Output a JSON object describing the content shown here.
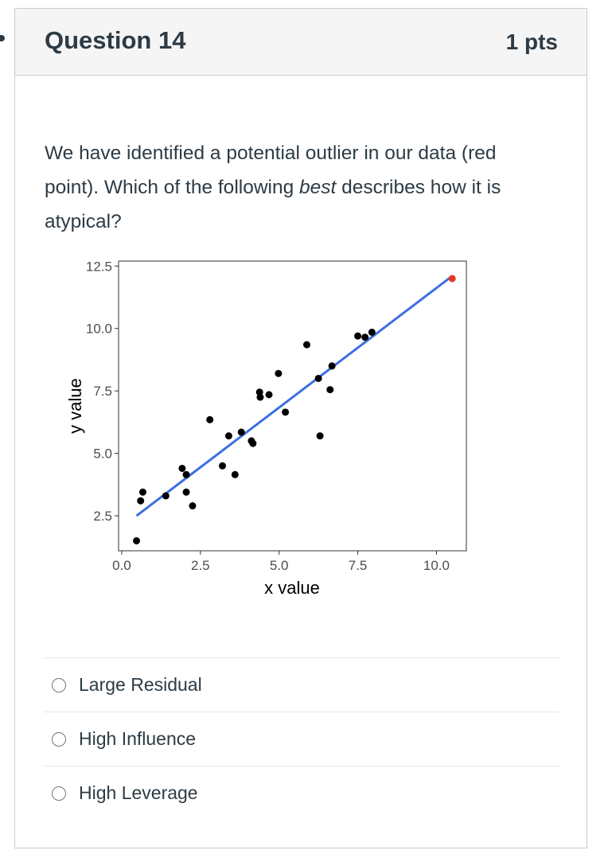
{
  "question": {
    "title": "Question 14",
    "points": "1 pts",
    "text_before": "We have identified a potential outlier in our data (red point). Which of the following ",
    "text_emphasis": "best",
    "text_after": " describes how it is atypical?"
  },
  "answers": [
    {
      "label": "Large Residual",
      "selected": false
    },
    {
      "label": "High Influence",
      "selected": false
    },
    {
      "label": "High Leverage",
      "selected": false
    }
  ],
  "chart_data": {
    "type": "scatter",
    "xlabel": "x value",
    "ylabel": "y value",
    "xlim": [
      -0.1,
      10.95
    ],
    "ylim": [
      1.1,
      12.7
    ],
    "x_ticks": [
      "0.0",
      "2.5",
      "5.0",
      "7.5",
      "10.0"
    ],
    "x_tick_values": [
      0,
      2.5,
      5,
      7.5,
      10
    ],
    "y_ticks": [
      "2.5",
      "5.0",
      "7.5",
      "10.0",
      "12.5"
    ],
    "y_tick_values": [
      2.5,
      5,
      7.5,
      10,
      12.5
    ],
    "grid": false,
    "points": [
      {
        "x": 0.47,
        "y": 1.5
      },
      {
        "x": 0.6,
        "y": 3.1
      },
      {
        "x": 0.67,
        "y": 3.45
      },
      {
        "x": 1.4,
        "y": 3.3
      },
      {
        "x": 1.92,
        "y": 4.4
      },
      {
        "x": 2.05,
        "y": 4.15
      },
      {
        "x": 2.05,
        "y": 3.45
      },
      {
        "x": 2.25,
        "y": 2.9
      },
      {
        "x": 2.8,
        "y": 6.35
      },
      {
        "x": 3.2,
        "y": 4.5
      },
      {
        "x": 3.4,
        "y": 5.7
      },
      {
        "x": 3.6,
        "y": 4.15
      },
      {
        "x": 3.8,
        "y": 5.85
      },
      {
        "x": 4.12,
        "y": 5.5
      },
      {
        "x": 4.17,
        "y": 5.4
      },
      {
        "x": 4.38,
        "y": 7.45
      },
      {
        "x": 4.4,
        "y": 7.25
      },
      {
        "x": 4.68,
        "y": 7.35
      },
      {
        "x": 4.98,
        "y": 8.2
      },
      {
        "x": 5.2,
        "y": 6.65
      },
      {
        "x": 5.88,
        "y": 9.35
      },
      {
        "x": 6.25,
        "y": 8.0
      },
      {
        "x": 6.3,
        "y": 5.7
      },
      {
        "x": 6.62,
        "y": 7.55
      },
      {
        "x": 6.68,
        "y": 8.5
      },
      {
        "x": 7.5,
        "y": 9.7
      },
      {
        "x": 7.73,
        "y": 9.65
      },
      {
        "x": 7.95,
        "y": 9.85
      }
    ],
    "outlier": {
      "x": 10.5,
      "y": 12.0,
      "color": "#e8372a"
    },
    "fit_line": {
      "x0": 0.47,
      "y0": 2.5,
      "x1": 10.5,
      "y1": 12.1,
      "color": "#3d6fe3"
    },
    "point_color": "#000000"
  }
}
